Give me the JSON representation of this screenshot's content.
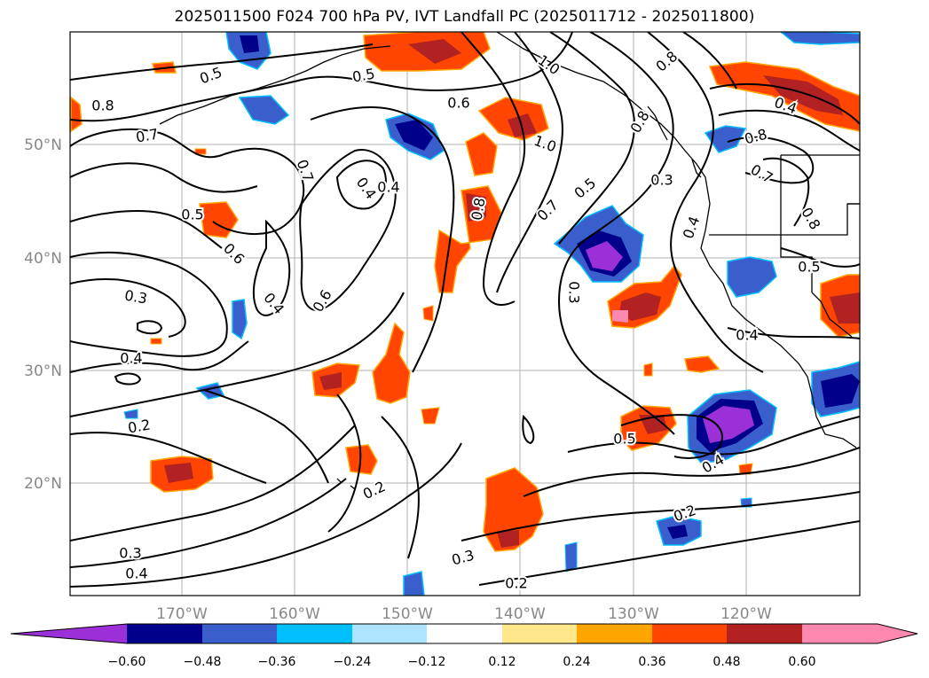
{
  "title": "2025011500 F024 700 hPa PV, IVT Landfall PC (2025011712 - 2025011800)",
  "lat_labels": [
    "50°N",
    "40°N",
    "30°N",
    "20°N"
  ],
  "lon_labels": [
    "170°W",
    "160°W",
    "150°W",
    "140°W",
    "130°W",
    "120°W"
  ],
  "colorbar": {
    "ticks": [
      "−0.60",
      "−0.48",
      "−0.36",
      "−0.24",
      "−0.12",
      "0.12",
      "0.24",
      "0.36",
      "0.48",
      "0.60"
    ],
    "colors": [
      "#9b30d9",
      "#00008b",
      "#3a5fcd",
      "#00bfff",
      "#aee4ff",
      "#ffffff",
      "#ffe88c",
      "#ffa500",
      "#ff4500",
      "#b22222",
      "#ff88b0"
    ]
  },
  "contour_labels": [
    {
      "text": "0.5"
    },
    {
      "text": "0.8"
    },
    {
      "text": "0.7"
    },
    {
      "text": "0.5"
    },
    {
      "text": "0.6"
    },
    {
      "text": "0.3"
    },
    {
      "text": "0.4"
    },
    {
      "text": "0.2"
    },
    {
      "text": "0.3"
    },
    {
      "text": "0.4"
    },
    {
      "text": "0.7"
    },
    {
      "text": "0.4"
    },
    {
      "text": "0.4"
    },
    {
      "text": "0.6"
    },
    {
      "text": "0.4"
    },
    {
      "text": "0.6"
    },
    {
      "text": "0.8"
    },
    {
      "text": "0.2"
    },
    {
      "text": "0.5"
    },
    {
      "text": "1.0"
    },
    {
      "text": "0.7"
    },
    {
      "text": "0.5"
    },
    {
      "text": "0.3"
    },
    {
      "text": "0.5"
    },
    {
      "text": "0.4"
    },
    {
      "text": "0.3"
    },
    {
      "text": "0.2"
    },
    {
      "text": "1.0"
    },
    {
      "text": "0.8"
    },
    {
      "text": "0.3"
    },
    {
      "text": "0.4"
    },
    {
      "text": "0.8"
    },
    {
      "text": "0.4"
    },
    {
      "text": "0.8"
    },
    {
      "text": "0.7"
    },
    {
      "text": "0.8"
    },
    {
      "text": "0.5"
    },
    {
      "text": "0.4"
    },
    {
      "text": "0.2"
    }
  ]
}
